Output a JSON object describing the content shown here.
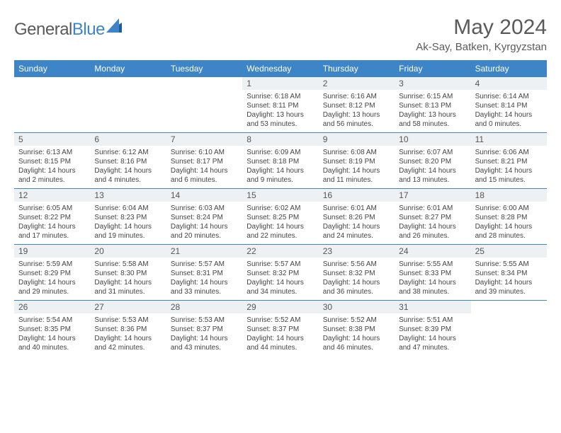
{
  "logo": {
    "text1": "General",
    "text2": "Blue"
  },
  "title": "May 2024",
  "location": "Ak-Say, Batken, Kyrgyzstan",
  "colors": {
    "header_bg": "#3d85c6",
    "daynum_bg": "#eef1f4",
    "text_gray": "#5a5a5a"
  },
  "daynames": [
    "Sunday",
    "Monday",
    "Tuesday",
    "Wednesday",
    "Thursday",
    "Friday",
    "Saturday"
  ],
  "weeks": [
    [
      {
        "n": "",
        "sr": "",
        "ss": "",
        "dl": ""
      },
      {
        "n": "",
        "sr": "",
        "ss": "",
        "dl": ""
      },
      {
        "n": "",
        "sr": "",
        "ss": "",
        "dl": ""
      },
      {
        "n": "1",
        "sr": "Sunrise: 6:18 AM",
        "ss": "Sunset: 8:11 PM",
        "dl": "Daylight: 13 hours and 53 minutes."
      },
      {
        "n": "2",
        "sr": "Sunrise: 6:16 AM",
        "ss": "Sunset: 8:12 PM",
        "dl": "Daylight: 13 hours and 56 minutes."
      },
      {
        "n": "3",
        "sr": "Sunrise: 6:15 AM",
        "ss": "Sunset: 8:13 PM",
        "dl": "Daylight: 13 hours and 58 minutes."
      },
      {
        "n": "4",
        "sr": "Sunrise: 6:14 AM",
        "ss": "Sunset: 8:14 PM",
        "dl": "Daylight: 14 hours and 0 minutes."
      }
    ],
    [
      {
        "n": "5",
        "sr": "Sunrise: 6:13 AM",
        "ss": "Sunset: 8:15 PM",
        "dl": "Daylight: 14 hours and 2 minutes."
      },
      {
        "n": "6",
        "sr": "Sunrise: 6:12 AM",
        "ss": "Sunset: 8:16 PM",
        "dl": "Daylight: 14 hours and 4 minutes."
      },
      {
        "n": "7",
        "sr": "Sunrise: 6:10 AM",
        "ss": "Sunset: 8:17 PM",
        "dl": "Daylight: 14 hours and 6 minutes."
      },
      {
        "n": "8",
        "sr": "Sunrise: 6:09 AM",
        "ss": "Sunset: 8:18 PM",
        "dl": "Daylight: 14 hours and 9 minutes."
      },
      {
        "n": "9",
        "sr": "Sunrise: 6:08 AM",
        "ss": "Sunset: 8:19 PM",
        "dl": "Daylight: 14 hours and 11 minutes."
      },
      {
        "n": "10",
        "sr": "Sunrise: 6:07 AM",
        "ss": "Sunset: 8:20 PM",
        "dl": "Daylight: 14 hours and 13 minutes."
      },
      {
        "n": "11",
        "sr": "Sunrise: 6:06 AM",
        "ss": "Sunset: 8:21 PM",
        "dl": "Daylight: 14 hours and 15 minutes."
      }
    ],
    [
      {
        "n": "12",
        "sr": "Sunrise: 6:05 AM",
        "ss": "Sunset: 8:22 PM",
        "dl": "Daylight: 14 hours and 17 minutes."
      },
      {
        "n": "13",
        "sr": "Sunrise: 6:04 AM",
        "ss": "Sunset: 8:23 PM",
        "dl": "Daylight: 14 hours and 19 minutes."
      },
      {
        "n": "14",
        "sr": "Sunrise: 6:03 AM",
        "ss": "Sunset: 8:24 PM",
        "dl": "Daylight: 14 hours and 20 minutes."
      },
      {
        "n": "15",
        "sr": "Sunrise: 6:02 AM",
        "ss": "Sunset: 8:25 PM",
        "dl": "Daylight: 14 hours and 22 minutes."
      },
      {
        "n": "16",
        "sr": "Sunrise: 6:01 AM",
        "ss": "Sunset: 8:26 PM",
        "dl": "Daylight: 14 hours and 24 minutes."
      },
      {
        "n": "17",
        "sr": "Sunrise: 6:01 AM",
        "ss": "Sunset: 8:27 PM",
        "dl": "Daylight: 14 hours and 26 minutes."
      },
      {
        "n": "18",
        "sr": "Sunrise: 6:00 AM",
        "ss": "Sunset: 8:28 PM",
        "dl": "Daylight: 14 hours and 28 minutes."
      }
    ],
    [
      {
        "n": "19",
        "sr": "Sunrise: 5:59 AM",
        "ss": "Sunset: 8:29 PM",
        "dl": "Daylight: 14 hours and 29 minutes."
      },
      {
        "n": "20",
        "sr": "Sunrise: 5:58 AM",
        "ss": "Sunset: 8:30 PM",
        "dl": "Daylight: 14 hours and 31 minutes."
      },
      {
        "n": "21",
        "sr": "Sunrise: 5:57 AM",
        "ss": "Sunset: 8:31 PM",
        "dl": "Daylight: 14 hours and 33 minutes."
      },
      {
        "n": "22",
        "sr": "Sunrise: 5:57 AM",
        "ss": "Sunset: 8:32 PM",
        "dl": "Daylight: 14 hours and 34 minutes."
      },
      {
        "n": "23",
        "sr": "Sunrise: 5:56 AM",
        "ss": "Sunset: 8:32 PM",
        "dl": "Daylight: 14 hours and 36 minutes."
      },
      {
        "n": "24",
        "sr": "Sunrise: 5:55 AM",
        "ss": "Sunset: 8:33 PM",
        "dl": "Daylight: 14 hours and 38 minutes."
      },
      {
        "n": "25",
        "sr": "Sunrise: 5:55 AM",
        "ss": "Sunset: 8:34 PM",
        "dl": "Daylight: 14 hours and 39 minutes."
      }
    ],
    [
      {
        "n": "26",
        "sr": "Sunrise: 5:54 AM",
        "ss": "Sunset: 8:35 PM",
        "dl": "Daylight: 14 hours and 40 minutes."
      },
      {
        "n": "27",
        "sr": "Sunrise: 5:53 AM",
        "ss": "Sunset: 8:36 PM",
        "dl": "Daylight: 14 hours and 42 minutes."
      },
      {
        "n": "28",
        "sr": "Sunrise: 5:53 AM",
        "ss": "Sunset: 8:37 PM",
        "dl": "Daylight: 14 hours and 43 minutes."
      },
      {
        "n": "29",
        "sr": "Sunrise: 5:52 AM",
        "ss": "Sunset: 8:37 PM",
        "dl": "Daylight: 14 hours and 44 minutes."
      },
      {
        "n": "30",
        "sr": "Sunrise: 5:52 AM",
        "ss": "Sunset: 8:38 PM",
        "dl": "Daylight: 14 hours and 46 minutes."
      },
      {
        "n": "31",
        "sr": "Sunrise: 5:51 AM",
        "ss": "Sunset: 8:39 PM",
        "dl": "Daylight: 14 hours and 47 minutes."
      },
      {
        "n": "",
        "sr": "",
        "ss": "",
        "dl": ""
      }
    ]
  ]
}
